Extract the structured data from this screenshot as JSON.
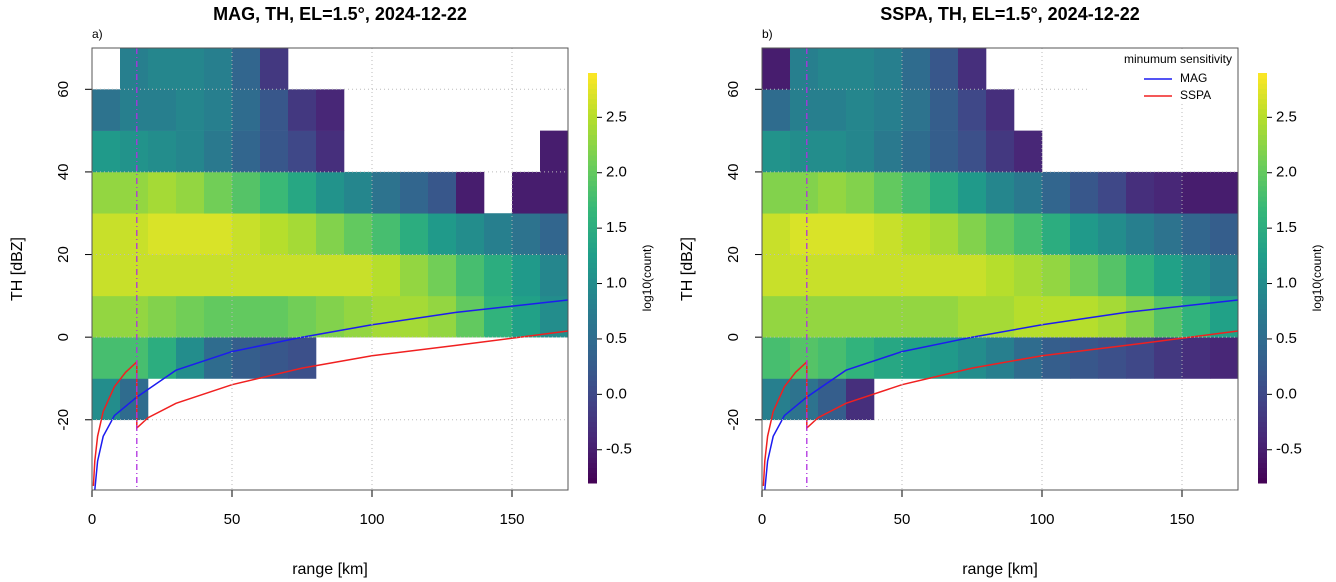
{
  "chart_data": [
    {
      "type": "heatmap",
      "title": "MAG, TH, EL=1.5°, 2024-12-22",
      "panel_label": "a)",
      "x_label": "range [km]",
      "y_label": "TH [dBZ]",
      "colorbar_label": "log10(count)",
      "xlim": [
        0,
        170
      ],
      "xticks": [
        0,
        50,
        100,
        150
      ],
      "ylim": [
        -37,
        70
      ],
      "yticks": [
        -20,
        0,
        20,
        40,
        60
      ],
      "grid": true,
      "zlim": [
        -0.8,
        2.9
      ],
      "zticks": [
        -0.5,
        {
          "value": 0,
          "label": "0.0"
        },
        0.5,
        {
          "value": 1,
          "label": "1.0"
        },
        1.5,
        {
          "value": 2,
          "label": "2.0"
        },
        2.5
      ],
      "x_bins": [
        0,
        10,
        20,
        30,
        40,
        50,
        60,
        70,
        80,
        90,
        100,
        110,
        120,
        130,
        140,
        150,
        160,
        170
      ],
      "y_bins": [
        -20,
        -10,
        0,
        10,
        20,
        30,
        40,
        50,
        60,
        70
      ],
      "z": [
        [
          1.0,
          0.5,
          null,
          null,
          null,
          null,
          null,
          null,
          null,
          null,
          null,
          null,
          null,
          null,
          null,
          null,
          null
        ],
        [
          1.8,
          1.8,
          1.5,
          1.0,
          0.5,
          0.3,
          0.2,
          0.1,
          null,
          null,
          null,
          null,
          null,
          null,
          null,
          null,
          null
        ],
        [
          2.3,
          2.3,
          2.2,
          2.1,
          2.0,
          2.0,
          2.0,
          2.1,
          2.2,
          2.3,
          2.4,
          2.4,
          2.3,
          2.0,
          1.6,
          1.3,
          1.0
        ],
        [
          2.6,
          2.6,
          2.6,
          2.6,
          2.6,
          2.6,
          2.6,
          2.6,
          2.6,
          2.6,
          2.5,
          2.3,
          2.1,
          1.8,
          1.5,
          1.2,
          0.9
        ],
        [
          2.6,
          2.6,
          2.7,
          2.7,
          2.7,
          2.6,
          2.5,
          2.4,
          2.2,
          2.0,
          1.8,
          1.5,
          1.2,
          1.0,
          0.8,
          0.6,
          0.4
        ],
        [
          2.3,
          2.3,
          2.4,
          2.3,
          2.1,
          1.9,
          1.7,
          1.4,
          1.1,
          0.9,
          0.6,
          0.4,
          0.2,
          -0.5,
          null,
          -0.5,
          -0.5
        ],
        [
          1.2,
          1.1,
          1.0,
          0.9,
          0.7,
          0.4,
          0.2,
          0.0,
          -0.3,
          null,
          null,
          null,
          null,
          null,
          null,
          null,
          -0.5
        ],
        [
          0.6,
          0.8,
          0.8,
          0.9,
          0.8,
          0.5,
          0.2,
          -0.2,
          -0.4,
          null,
          null,
          null,
          null,
          null,
          null,
          null,
          null
        ],
        [
          null,
          0.8,
          0.9,
          0.9,
          0.8,
          0.4,
          -0.2,
          null,
          null,
          null,
          null,
          null,
          null,
          null,
          null,
          null,
          null
        ]
      ],
      "vline_x": 16,
      "vline_color": "#b030e0",
      "series": [
        {
          "color": "#1c1cf0",
          "x": [
            1,
            2,
            4,
            8,
            16,
            30,
            50,
            75,
            100,
            130,
            170
          ],
          "values": [
            -37,
            -30,
            -24,
            -19,
            -14.5,
            -8,
            -3.5,
            0,
            3,
            6,
            9
          ]
        },
        {
          "color": "#f02020",
          "x": [
            0.5,
            1,
            2,
            4,
            8,
            12,
            16,
            16,
            20,
            30,
            50,
            75,
            100,
            130,
            170
          ],
          "values": [
            -36,
            -30,
            -24,
            -18,
            -12,
            -8.5,
            -6,
            -22,
            -19.5,
            -16,
            -11.5,
            -7.5,
            -4.5,
            -2,
            1.5
          ]
        }
      ]
    },
    {
      "type": "heatmap",
      "title": "SSPA, TH, EL=1.5°, 2024-12-22",
      "panel_label": "b)",
      "x_label": "range [km]",
      "y_label": "TH [dBZ]",
      "colorbar_label": "log10(count)",
      "xlim": [
        0,
        170
      ],
      "xticks": [
        0,
        50,
        100,
        150
      ],
      "ylim": [
        -37,
        70
      ],
      "yticks": [
        -20,
        0,
        20,
        40,
        60
      ],
      "grid": true,
      "zlim": [
        -0.8,
        2.9
      ],
      "zticks": [
        -0.5,
        {
          "value": 0,
          "label": "0.0"
        },
        0.5,
        {
          "value": 1,
          "label": "1.0"
        },
        1.5,
        {
          "value": 2,
          "label": "2.0"
        },
        2.5
      ],
      "x_bins": [
        0,
        10,
        20,
        30,
        40,
        50,
        60,
        70,
        80,
        90,
        100,
        110,
        120,
        130,
        140,
        150,
        160,
        170
      ],
      "y_bins": [
        -20,
        -10,
        0,
        10,
        20,
        30,
        40,
        50,
        60,
        70
      ],
      "z": [
        [
          0.8,
          0.6,
          0.3,
          -0.3,
          null,
          null,
          null,
          null,
          null,
          null,
          null,
          null,
          null,
          null,
          null,
          null,
          null
        ],
        [
          1.8,
          1.9,
          1.8,
          1.6,
          1.4,
          1.3,
          1.2,
          1.0,
          0.8,
          0.5,
          0.3,
          0.2,
          0.1,
          0.0,
          -0.2,
          -0.3,
          -0.4
        ],
        [
          2.3,
          2.3,
          2.3,
          2.3,
          2.3,
          2.3,
          2.3,
          2.4,
          2.4,
          2.5,
          2.5,
          2.5,
          2.4,
          2.2,
          1.9,
          1.6,
          1.3
        ],
        [
          2.6,
          2.6,
          2.6,
          2.6,
          2.6,
          2.6,
          2.6,
          2.6,
          2.5,
          2.4,
          2.3,
          2.1,
          1.9,
          1.6,
          1.3,
          1.0,
          0.8
        ],
        [
          2.6,
          2.7,
          2.7,
          2.7,
          2.6,
          2.5,
          2.4,
          2.2,
          2.0,
          1.8,
          1.5,
          1.2,
          1.0,
          0.8,
          0.6,
          0.4,
          0.3
        ],
        [
          2.2,
          2.2,
          2.3,
          2.2,
          2.0,
          1.8,
          1.5,
          1.2,
          0.9,
          0.7,
          0.4,
          0.2,
          0.0,
          -0.3,
          -0.4,
          -0.5,
          -0.5
        ],
        [
          1.1,
          1.0,
          1.0,
          0.9,
          0.7,
          0.5,
          0.3,
          0.1,
          -0.2,
          -0.4,
          null,
          null,
          null,
          null,
          null,
          null,
          null
        ],
        [
          0.5,
          0.8,
          0.8,
          0.9,
          0.8,
          0.6,
          0.3,
          0.0,
          -0.3,
          null,
          null,
          null,
          null,
          null,
          null,
          null,
          null
        ],
        [
          -0.5,
          0.8,
          0.9,
          0.9,
          0.8,
          0.5,
          0.2,
          -0.3,
          null,
          null,
          null,
          null,
          null,
          null,
          null,
          null,
          null
        ]
      ],
      "vline_x": 16,
      "vline_color": "#b030e0",
      "legend": "topright",
      "legend_title": "minumum sensitivity",
      "series": [
        {
          "name": "MAG",
          "color": "#1c1cf0",
          "x": [
            1,
            2,
            4,
            8,
            16,
            30,
            50,
            75,
            100,
            130,
            170
          ],
          "values": [
            -37,
            -30,
            -24,
            -19,
            -14.5,
            -8,
            -3.5,
            0,
            3,
            6,
            9
          ]
        },
        {
          "name": "SSPA",
          "color": "#f02020",
          "x": [
            0.5,
            1,
            2,
            4,
            8,
            12,
            16,
            16,
            20,
            30,
            50,
            75,
            100,
            130,
            170
          ],
          "values": [
            -36,
            -30,
            -24,
            -18,
            -12,
            -8.5,
            -6,
            -22,
            -19.5,
            -16,
            -11.5,
            -7.5,
            -4.5,
            -2,
            1.5
          ]
        }
      ]
    }
  ]
}
